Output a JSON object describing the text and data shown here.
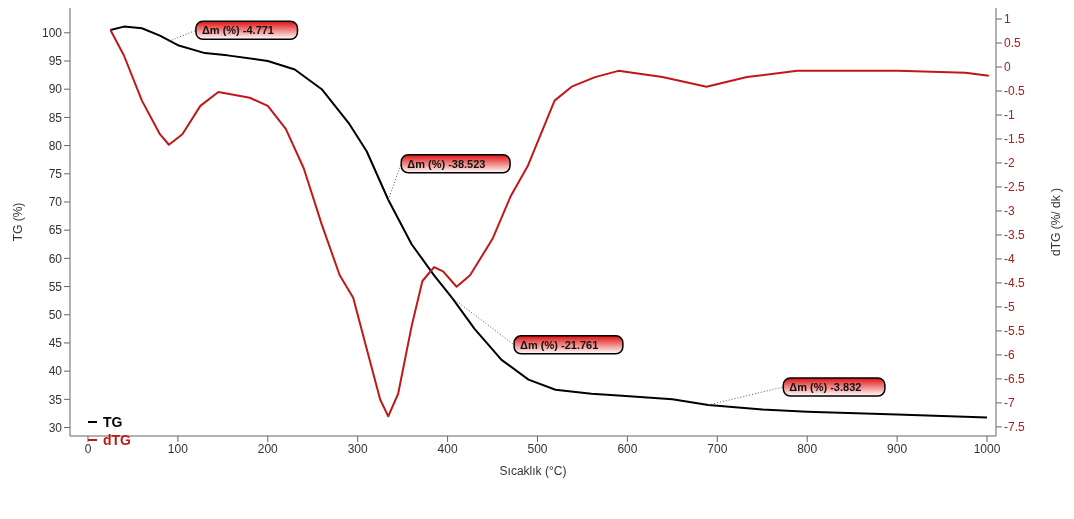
{
  "chart_data": {
    "type": "line",
    "xlabel": "Sıcaklık (°C)",
    "ylabel": "TG  (%)",
    "y2label": "dTG (%/ dk )",
    "xlim": [
      -20,
      1010
    ],
    "xticks": [
      0,
      100,
      200,
      300,
      400,
      500,
      600,
      700,
      800,
      900,
      1000
    ],
    "ylim": [
      28.5,
      104.4
    ],
    "yticks": [
      30,
      35,
      40,
      45,
      50,
      55,
      60,
      65,
      70,
      75,
      80,
      85,
      90,
      95,
      100
    ],
    "y2lim": [
      -7.69,
      1.23
    ],
    "y2ticks": [
      -7.5,
      -7,
      -6.5,
      -6,
      -5.5,
      -5,
      -4.5,
      -4,
      -3.5,
      -3,
      -2.5,
      -2,
      -1.5,
      -1,
      -0.5,
      0,
      0.5,
      1
    ],
    "grid": false,
    "legend": "bottom left",
    "marker": "none",
    "line_style": "solid",
    "series": [
      {
        "name": "TG",
        "color": "#000000",
        "x": [
          25,
          40,
          60,
          80,
          100,
          130,
          155,
          200,
          230,
          260,
          290,
          310,
          334,
          360,
          385,
          405,
          430,
          460,
          490,
          520,
          560,
          590,
          650,
          690,
          750,
          800,
          900,
          1000
        ],
        "values": [
          100.5,
          101.1,
          100.8,
          99.5,
          97.8,
          96.4,
          96,
          95,
          93.5,
          90,
          84,
          79,
          70.4,
          62.5,
          57,
          53,
          47.5,
          42,
          38.5,
          36.7,
          36,
          35.7,
          35,
          34,
          33.2,
          32.8,
          32.3,
          31.8
        ]
      },
      {
        "name": "dTG",
        "color": "#c0181a",
        "axis": "y2",
        "x": [
          25,
          40,
          60,
          80,
          90,
          105,
          125,
          145,
          180,
          200,
          220,
          240,
          260,
          280,
          295,
          310,
          325,
          334,
          345,
          360,
          372,
          385,
          395,
          410,
          425,
          450,
          470,
          489,
          519,
          538,
          564,
          590,
          639,
          688,
          733,
          789,
          864,
          901,
          976,
          1002
        ],
        "values": [
          0.77,
          0.24,
          -0.7,
          -1.4,
          -1.62,
          -1.4,
          -0.81,
          -0.52,
          -0.64,
          -0.81,
          -1.29,
          -2.11,
          -3.28,
          -4.34,
          -4.81,
          -5.87,
          -6.93,
          -7.28,
          -6.81,
          -5.4,
          -4.46,
          -4.17,
          -4.26,
          -4.58,
          -4.34,
          -3.58,
          -2.7,
          -2.07,
          -0.7,
          -0.41,
          -0.21,
          -0.08,
          -0.21,
          -0.41,
          -0.21,
          -0.08,
          -0.08,
          -0.08,
          -0.12,
          -0.18
        ]
      }
    ],
    "annotations": [
      {
        "text": "Δm (%) -4.771",
        "x": 90,
        "y": 98.5
      },
      {
        "text": "Δm (%) -38.523",
        "x": 334,
        "y": 70.4
      },
      {
        "text": "Δm (%) -21.761",
        "x": 405,
        "y": 53
      },
      {
        "text": "Δm (%) -3.832",
        "x": 690,
        "y": 34
      }
    ]
  }
}
